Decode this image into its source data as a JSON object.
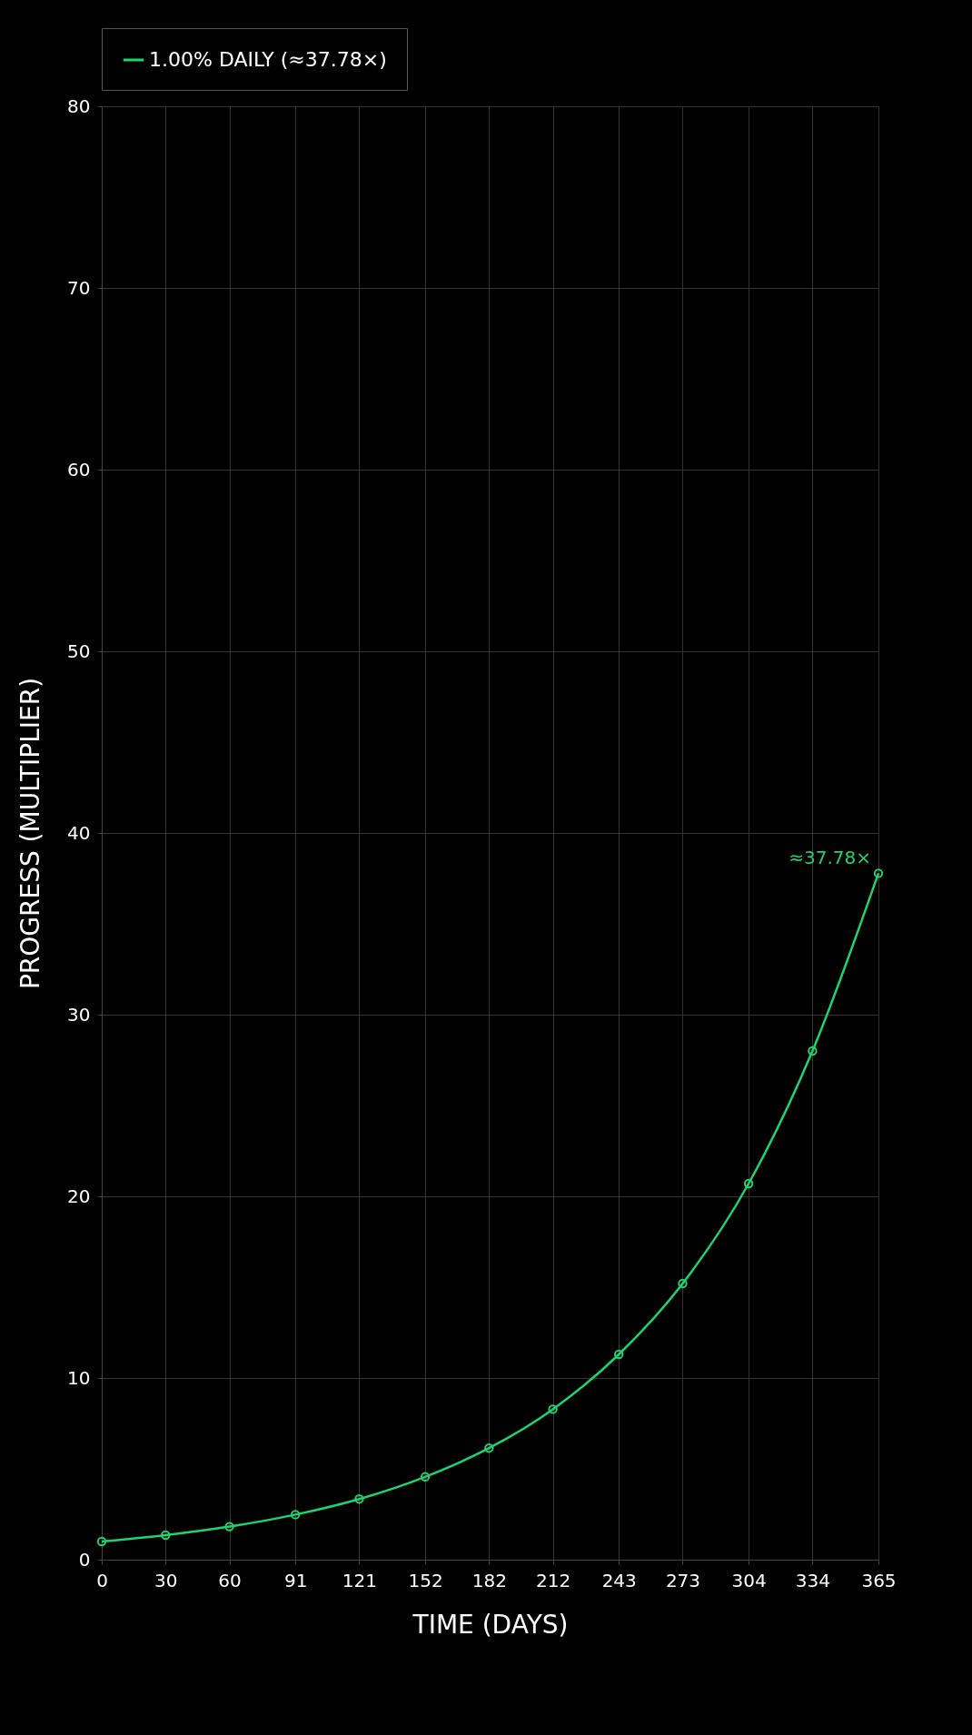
{
  "chart_data": {
    "type": "line",
    "xlabel": "TIME (DAYS)",
    "ylabel": "PROGRESS (MULTIPLIER)",
    "x": [
      0,
      30,
      60,
      91,
      121,
      152,
      182,
      212,
      243,
      273,
      304,
      334,
      365
    ],
    "series": [
      {
        "name": "1.00% DAILY (≈37.78×)",
        "color": "#1ed36f",
        "values": [
          1.0,
          1.35,
          1.82,
          2.48,
          3.34,
          4.56,
          6.14,
          8.28,
          11.3,
          15.2,
          20.7,
          28.0,
          37.78
        ]
      }
    ],
    "xlim": [
      0,
      365
    ],
    "xticks": [
      0,
      30,
      60,
      91,
      121,
      152,
      182,
      212,
      243,
      273,
      304,
      334,
      365
    ],
    "ylim": [
      0,
      80
    ],
    "yticks": [
      0,
      10,
      20,
      30,
      40,
      50,
      60,
      70,
      80
    ],
    "annotations": [
      {
        "text": "≈37.78×",
        "x": 365,
        "y": 37.78
      }
    ],
    "grid": true,
    "legend": "top",
    "marker": "circle",
    "line_style": "solid"
  }
}
